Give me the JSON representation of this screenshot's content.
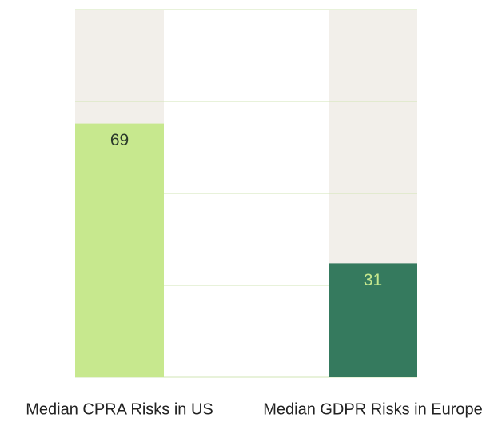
{
  "chart_data": {
    "type": "bar",
    "categories": [
      "Median CPRA Risks in US",
      "Median GDPR Risks in Europe"
    ],
    "series": [
      {
        "values": [
          69,
          31
        ],
        "colors": [
          "#c7e88e",
          "#357a5e"
        ],
        "label_colors": [
          "#2b3a2b",
          "#c7e88e"
        ]
      }
    ],
    "track_color": "#f2efea",
    "ylim": [
      0,
      100
    ],
    "yticks": [
      0,
      25,
      50,
      75,
      100
    ],
    "grid": true,
    "grid_color": "#d2e6b4"
  }
}
